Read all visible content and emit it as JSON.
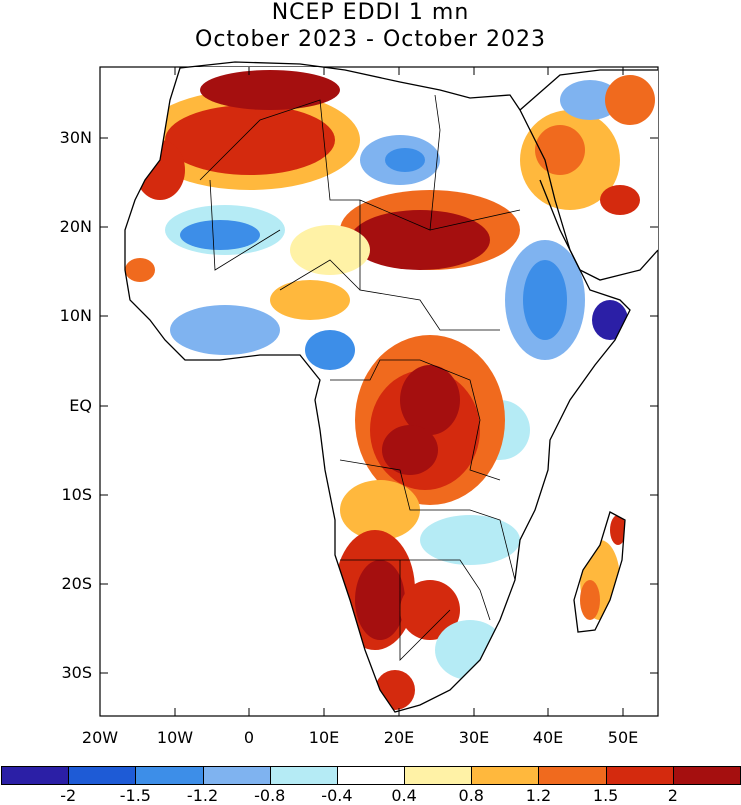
{
  "title": {
    "line1": "NCEP EDDI 1 mn",
    "line2": "October 2023 - October 2023"
  },
  "axes": {
    "x_labels": [
      "20W",
      "10W",
      "0",
      "10E",
      "20E",
      "30E",
      "40E",
      "50E"
    ],
    "y_labels": [
      "30N",
      "20N",
      "10N",
      "EQ",
      "10S",
      "20S",
      "30S"
    ]
  },
  "colorbar": {
    "labels": [
      "-2",
      "-1.5",
      "-1.2",
      "-0.8",
      "-0.4",
      "0.4",
      "0.8",
      "1.2",
      "1.5",
      "2"
    ],
    "colors": [
      "#2b1fa6",
      "#1e5bd6",
      "#3d8ee8",
      "#7fb3f0",
      "#b5ebf5",
      "#ffffff",
      "#fff2a6",
      "#ffb83d",
      "#f06a1e",
      "#d42a0e",
      "#a50f0f"
    ]
  }
}
